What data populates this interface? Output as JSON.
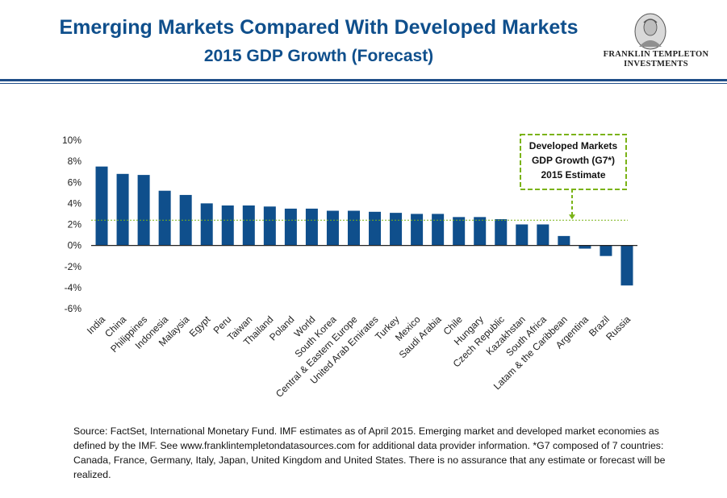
{
  "header": {
    "title_line1": "Emerging Markets Compared With Developed Markets",
    "title_line2": "2015 GDP Growth (Forecast)"
  },
  "logo": {
    "line1": "FRANKLIN TEMPLETON",
    "line2": "INVESTMENTS"
  },
  "chart_data": {
    "type": "bar",
    "categories": [
      "India",
      "China",
      "Philippines",
      "Indonesia",
      "Malaysia",
      "Egypt",
      "Peru",
      "Taiwan",
      "Thailand",
      "Poland",
      "World",
      "South Korea",
      "Central & Eastern Europe",
      "United Arab Emirates",
      "Turkey",
      "Mexico",
      "Saudi Arabia",
      "Chile",
      "Hungary",
      "Czech Republic",
      "Kazakhstan",
      "South Africa",
      "Latam & the Caribbean",
      "Argentina",
      "Brazil",
      "Russia"
    ],
    "values": [
      7.5,
      6.8,
      6.7,
      5.2,
      4.8,
      4.0,
      3.8,
      3.8,
      3.7,
      3.5,
      3.5,
      3.3,
      3.3,
      3.2,
      3.1,
      3.0,
      3.0,
      2.7,
      2.7,
      2.5,
      2.0,
      2.0,
      0.9,
      -0.3,
      -1.0,
      -3.8
    ],
    "ylim": [
      -6,
      10
    ],
    "yticks": [
      "10%",
      "8%",
      "6%",
      "4%",
      "2%",
      "0%",
      "-2%",
      "-4%",
      "-6%"
    ],
    "reference_line": {
      "value": 2.4,
      "label_lines": [
        "Developed Markets",
        "GDP Growth (G7*)",
        "2015 Estimate"
      ]
    },
    "bar_color": "#0f4f8c",
    "reference_color": "#7ab317"
  },
  "footer": {
    "source": "Source: FactSet, International Monetary Fund. IMF estimates as of April 2015. Emerging market and developed market economies as defined by the IMF. See www.franklintempletondatasources.com for additional data provider information. *G7 composed of 7 countries: Canada, France, Germany, Italy, Japan, United Kingdom and United States. There is no assurance that any estimate or forecast will be realized."
  }
}
